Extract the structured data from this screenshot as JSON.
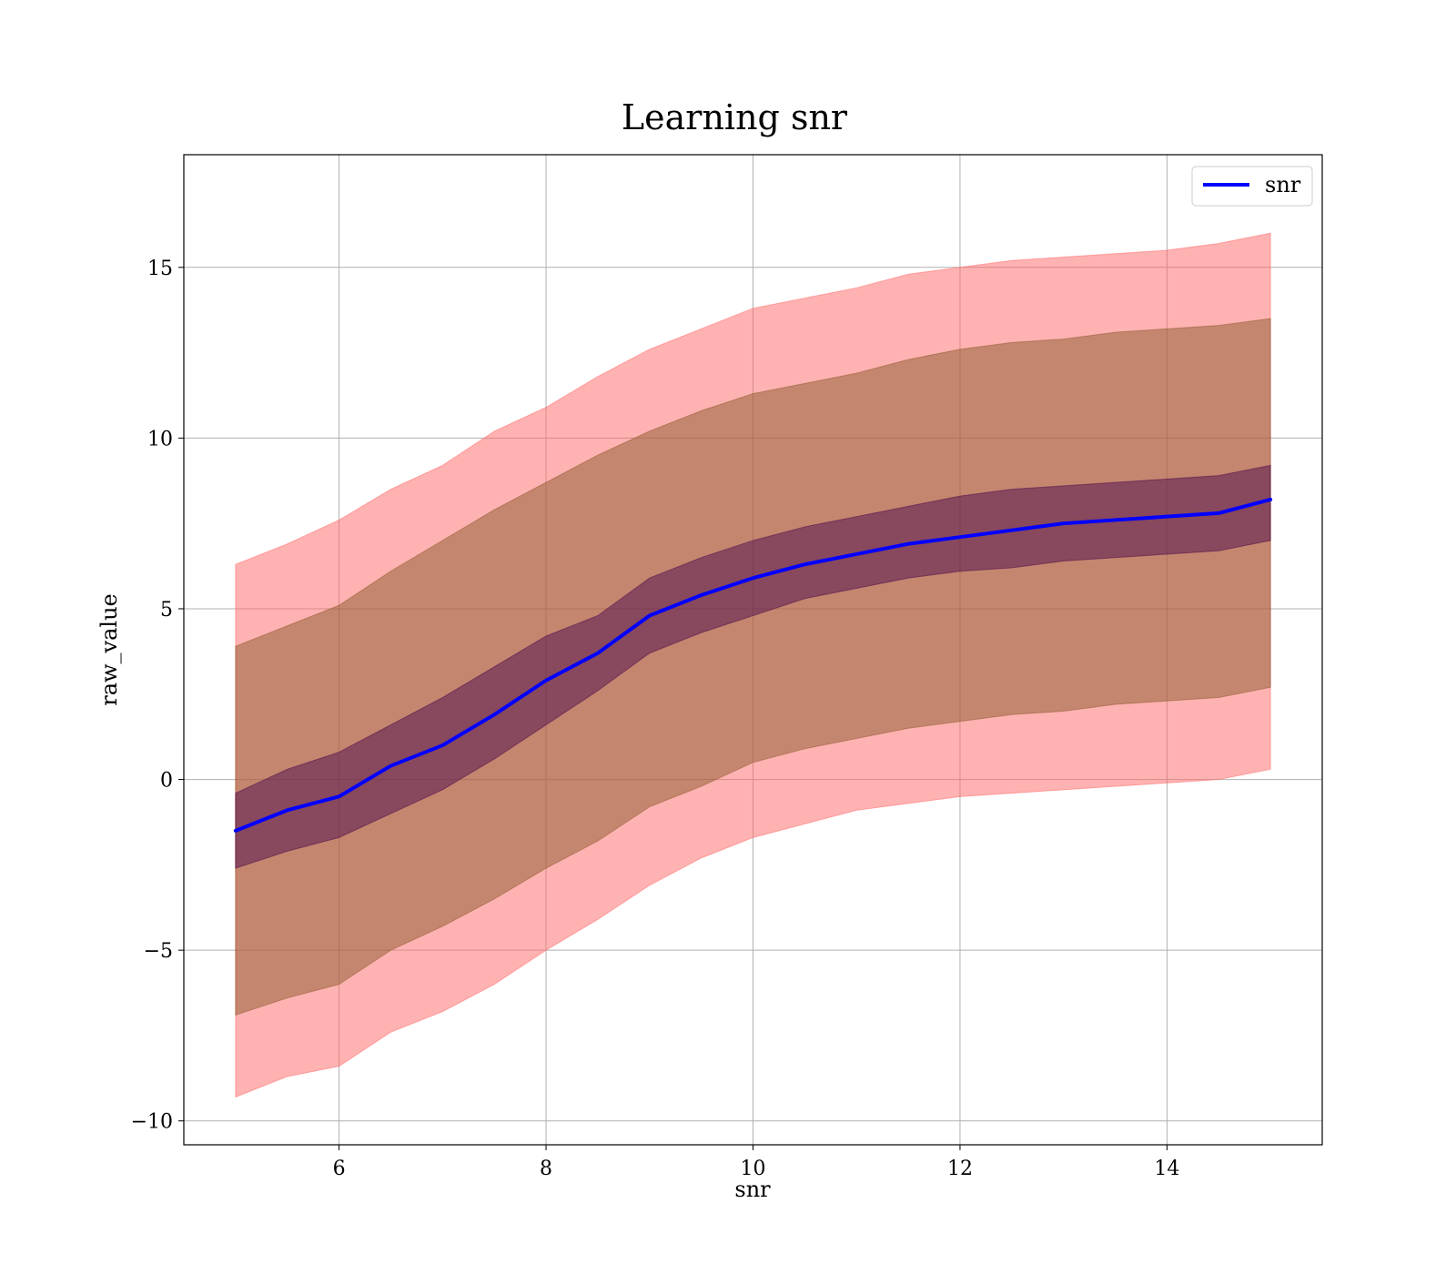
{
  "chart_data": {
    "type": "line",
    "title": "Learning snr",
    "xlabel": "snr",
    "ylabel": "raw_value",
    "xlim": [
      4.5,
      15.5
    ],
    "ylim": [
      -10.7,
      18.3
    ],
    "grid": true,
    "legend_position": "top-right",
    "x_ticks": [
      6,
      8,
      10,
      12,
      14
    ],
    "x_tick_labels": [
      "6",
      "8",
      "10",
      "12",
      "14"
    ],
    "y_ticks": [
      -10,
      -5,
      0,
      5,
      10,
      15
    ],
    "y_tick_labels": [
      "−10",
      "−5",
      "0",
      "5",
      "10",
      "15"
    ],
    "x": [
      5.0,
      5.5,
      6.0,
      6.5,
      7.0,
      7.5,
      8.0,
      8.5,
      9.0,
      9.5,
      10.0,
      10.5,
      11.0,
      11.5,
      12.0,
      12.5,
      13.0,
      13.5,
      14.0,
      14.5,
      15.0
    ],
    "series": [
      {
        "name": "snr",
        "color": "#0000ff",
        "values": [
          -1.5,
          -0.9,
          -0.5,
          0.4,
          1.0,
          1.9,
          2.9,
          3.7,
          4.8,
          5.4,
          5.9,
          6.3,
          6.6,
          6.9,
          7.1,
          7.3,
          7.5,
          7.6,
          7.7,
          7.8,
          8.2
        ]
      }
    ],
    "bands": [
      {
        "color": "#ff6666",
        "lower": [
          -9.3,
          -8.7,
          -8.4,
          -7.4,
          -6.8,
          -6.0,
          -5.0,
          -4.1,
          -3.1,
          -2.3,
          -1.7,
          -1.3,
          -0.9,
          -0.7,
          -0.5,
          -0.4,
          -0.3,
          -0.2,
          -0.1,
          0.0,
          0.3
        ],
        "upper": [
          6.3,
          6.9,
          7.6,
          8.5,
          9.2,
          10.2,
          10.9,
          11.8,
          12.6,
          13.2,
          13.8,
          14.1,
          14.4,
          14.8,
          15.0,
          15.2,
          15.3,
          15.4,
          15.5,
          15.7,
          16.0
        ]
      },
      {
        "color": "#8b5a2b",
        "lower": [
          -6.9,
          -6.4,
          -6.0,
          -5.0,
          -4.3,
          -3.5,
          -2.6,
          -1.8,
          -0.8,
          -0.2,
          0.5,
          0.9,
          1.2,
          1.5,
          1.7,
          1.9,
          2.0,
          2.2,
          2.3,
          2.4,
          2.7
        ],
        "upper": [
          3.9,
          4.5,
          5.1,
          6.1,
          7.0,
          7.9,
          8.7,
          9.5,
          10.2,
          10.8,
          11.3,
          11.6,
          11.9,
          12.3,
          12.6,
          12.8,
          12.9,
          13.1,
          13.2,
          13.3,
          13.5
        ]
      },
      {
        "color": "#4b0a4b",
        "lower": [
          -2.6,
          -2.1,
          -1.7,
          -1.0,
          -0.3,
          0.6,
          1.6,
          2.6,
          3.7,
          4.3,
          4.8,
          5.3,
          5.6,
          5.9,
          6.1,
          6.2,
          6.4,
          6.5,
          6.6,
          6.7,
          7.0
        ],
        "upper": [
          -0.4,
          0.3,
          0.8,
          1.6,
          2.4,
          3.3,
          4.2,
          4.8,
          5.9,
          6.5,
          7.0,
          7.4,
          7.7,
          8.0,
          8.3,
          8.5,
          8.6,
          8.7,
          8.8,
          8.9,
          9.2
        ]
      }
    ],
    "legend": [
      {
        "label": "snr",
        "color": "#0000ff"
      }
    ]
  }
}
